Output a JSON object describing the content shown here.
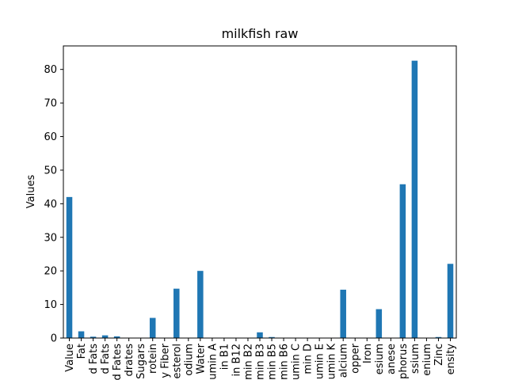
{
  "colors": {
    "bar": "#1f77b4",
    "axis": "#000000",
    "background": "#ffffff"
  },
  "chart_data": {
    "type": "bar",
    "title": "milkfish raw",
    "xlabel": "",
    "ylabel": "Values",
    "ylim": [
      0,
      87
    ],
    "yticks": [
      0,
      10,
      20,
      30,
      40,
      50,
      60,
      70,
      80
    ],
    "grid": false,
    "legend": "none",
    "categories": [
      "Value",
      "Fat",
      "d Fats",
      "d Fats",
      "d Fates",
      "drates",
      "Sugars",
      "rotein",
      "y Fiber",
      "esterol",
      "odium",
      "Water",
      "umin A",
      "in B1",
      "in B12",
      "min B2",
      "min B3",
      "min B5",
      "min B6",
      "umin C",
      "min D",
      "umin E",
      "umin K",
      "alcium",
      "opper",
      "Iron",
      "esium",
      "anese",
      "phorus",
      "ssium",
      "enium",
      "Zinc",
      "ensity"
    ],
    "values": [
      42.0,
      2.0,
      0.4,
      0.8,
      0.5,
      0.0,
      0.0,
      6.0,
      0.0,
      14.7,
      0.0,
      20.0,
      0.0,
      0.0,
      0.0,
      0.0,
      1.7,
      0.3,
      0.0,
      0.0,
      0.0,
      0.0,
      0.0,
      14.4,
      0.0,
      0.0,
      8.6,
      0.0,
      45.8,
      82.6,
      0.0,
      0.3,
      22.1
    ]
  }
}
